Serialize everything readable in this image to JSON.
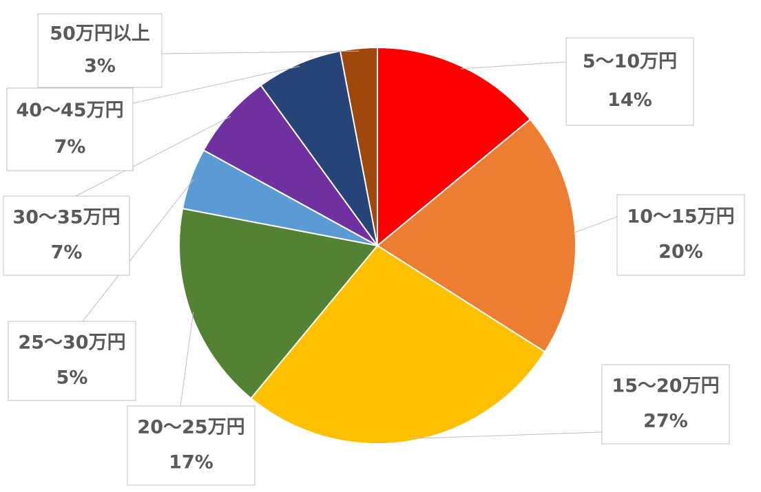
{
  "chart_data": {
    "type": "pie",
    "categories": [
      "5〜10万円",
      "10〜15万円",
      "15〜20万円",
      "20〜25万円",
      "25〜30万円",
      "30〜35万円",
      "40〜45万円",
      "50万円以上"
    ],
    "values": [
      14,
      20,
      27,
      17,
      5,
      7,
      7,
      3
    ],
    "value_labels": [
      "14%",
      "20%",
      "27%",
      "17%",
      "5%",
      "7%",
      "7%",
      "3%"
    ],
    "colors": [
      "#ff0000",
      "#ed7d31",
      "#ffc000",
      "#548235",
      "#5b9bd5",
      "#7030a0",
      "#264478",
      "#9e480e"
    ]
  }
}
